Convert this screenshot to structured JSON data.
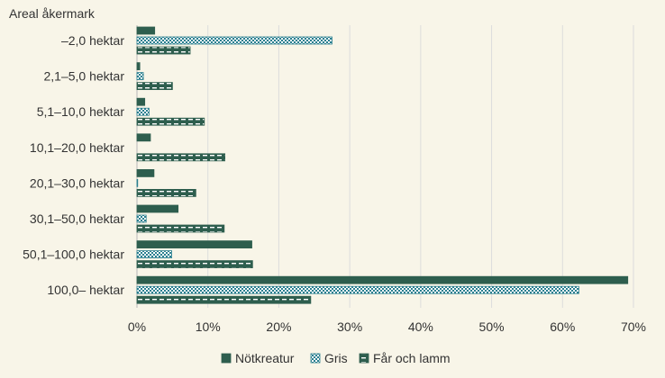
{
  "chart_data": {
    "type": "bar",
    "orientation": "horizontal",
    "y_axis_title": "Areal åkermark",
    "categories": [
      "–2,0 hektar",
      "2,1–5,0 hektar",
      "5,1–10,0 hektar",
      "10,1–20,0 hektar",
      "20,1–30,0 hektar",
      "30,1–50,0 hektar",
      "50,1–100,0 hektar",
      "100,0– hektar"
    ],
    "series": [
      {
        "name": "Nötkreatur",
        "color": "#2e5e4e",
        "pattern": "solid",
        "values": [
          2.5,
          0.4,
          1.1,
          1.9,
          2.4,
          5.8,
          16.2,
          69.2
        ]
      },
      {
        "name": "Gris",
        "color": "#2a7f8f",
        "pattern": "crosshatch",
        "values": [
          27.5,
          0.9,
          1.7,
          0.0,
          0.1,
          1.3,
          4.9,
          62.3
        ]
      },
      {
        "name": "Får och lamm",
        "color": "#2e5e4e",
        "pattern": "dashed",
        "values": [
          7.5,
          5.0,
          9.5,
          12.4,
          8.3,
          12.3,
          16.3,
          24.5
        ]
      }
    ],
    "xlim": [
      0,
      70
    ],
    "x_ticks": [
      0,
      10,
      20,
      30,
      40,
      50,
      60,
      70
    ],
    "x_tick_labels": [
      "0%",
      "10%",
      "20%",
      "30%",
      "40%",
      "50%",
      "60%",
      "70%"
    ],
    "grid": "vertical",
    "legend_position": "bottom"
  }
}
